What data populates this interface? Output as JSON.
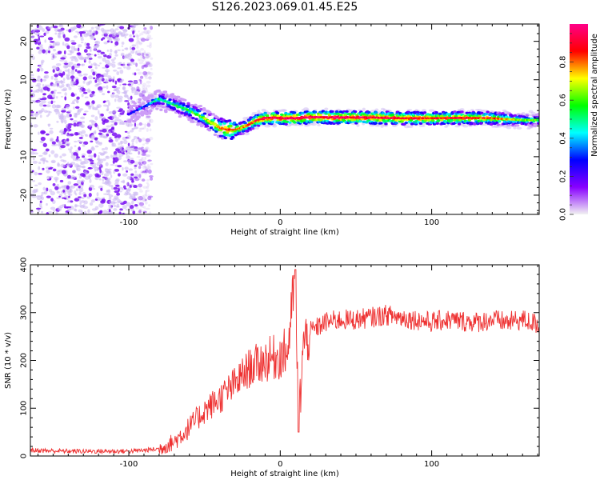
{
  "page_title": "S126.2023.069.01.45.E25",
  "colors": {
    "snr_line": "#ee3030",
    "scatter_light": "#cbb7f2",
    "scatter_dark": "#7a10f2"
  },
  "chart_data": [
    {
      "type": "heatmap",
      "title": "",
      "xlabel": "Height of straight line (km)",
      "ylabel": "Frequency (Hz)",
      "xlim": [
        -165,
        171
      ],
      "ylim": [
        -25,
        24.5
      ],
      "x_ticks": [
        "-100",
        "0",
        "100"
      ],
      "y_ticks": [
        "-20",
        "-10",
        "0",
        "10",
        "20"
      ],
      "colorbar": {
        "label": "Normalized spectral amplitude",
        "range": [
          0,
          1
        ],
        "ticks": [
          "0.0",
          "0.2",
          "0.4",
          "0.6",
          "0.8"
        ],
        "colors": [
          "#f2f2f2",
          "#8800ff",
          "#0000ff",
          "#00ffff",
          "#00ff00",
          "#ffff00",
          "#ff0000",
          "#ff0088"
        ]
      },
      "ridge": {
        "name": "",
        "x": [
          -100,
          -90,
          -80,
          -70,
          -60,
          -50,
          -40,
          -35,
          -30,
          -25,
          -20,
          -15,
          -10,
          -5,
          0,
          10,
          20,
          40,
          60,
          80,
          100,
          120,
          140,
          160,
          171
        ],
        "y": [
          1,
          3,
          5,
          3.5,
          2,
          0,
          -2.5,
          -3,
          -3,
          -2.5,
          -1.5,
          -0.5,
          0,
          0.2,
          0,
          0,
          0.3,
          0.2,
          0.2,
          0,
          0,
          0.1,
          0,
          -0.5,
          -0.5
        ],
        "amplitude": [
          0.2,
          0.3,
          0.45,
          0.5,
          0.55,
          0.6,
          0.75,
          0.85,
          0.8,
          0.75,
          0.8,
          0.85,
          0.9,
          0.92,
          0.9,
          0.95,
          0.92,
          0.92,
          0.9,
          0.88,
          0.85,
          0.85,
          0.8,
          0.6,
          0.55
        ]
      },
      "noise_region": {
        "x_range": [
          -165,
          -85
        ],
        "y_range": [
          -25,
          24.5
        ]
      }
    },
    {
      "type": "line",
      "title": "",
      "xlabel": "Height of straight line (km)",
      "ylabel": "SNR (10 * v/v)",
      "xlim": [
        -165,
        171
      ],
      "ylim": [
        0,
        400
      ],
      "x_ticks": [
        "-100",
        "0",
        "100"
      ],
      "y_ticks": [
        "0",
        "100",
        "200",
        "300",
        "400"
      ],
      "series": [
        {
          "name": "",
          "x": [
            -165,
            -140,
            -120,
            -100,
            -90,
            -80,
            -70,
            -60,
            -50,
            -40,
            -30,
            -20,
            -10,
            0,
            5,
            10,
            12,
            15,
            20,
            30,
            40,
            50,
            60,
            70,
            80,
            90,
            100,
            110,
            120,
            130,
            140,
            150,
            160,
            171
          ],
          "values": [
            12,
            10,
            10,
            10,
            12,
            15,
            30,
            60,
            95,
            120,
            150,
            185,
            200,
            210,
            220,
            390,
            50,
            230,
            260,
            280,
            285,
            285,
            290,
            295,
            290,
            285,
            280,
            285,
            282,
            280,
            285,
            280,
            285,
            275
          ]
        }
      ]
    }
  ]
}
